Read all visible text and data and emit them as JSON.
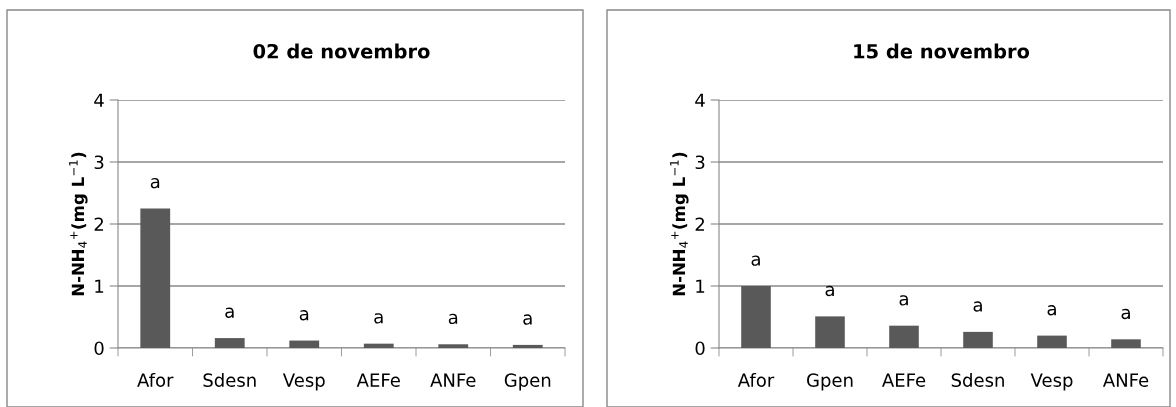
{
  "chart_data": [
    {
      "type": "bar",
      "title": "02 de novembro",
      "ylabel": "N-NH$_{4}$$^{+}$(mg L$^{−1}$)",
      "categories": [
        "Afor",
        "Sdesn",
        "Vesp",
        "AEFe",
        "ANFe",
        "Gpen"
      ],
      "values": [
        2.25,
        0.16,
        0.12,
        0.07,
        0.06,
        0.05
      ],
      "value_labels": [
        "a",
        "a",
        "a",
        "a",
        "a",
        "a"
      ],
      "color": "#595959",
      "ylim": [
        0,
        4
      ],
      "yticks": [
        0,
        1,
        2,
        3,
        4
      ],
      "grid": "y",
      "legend": false
    },
    {
      "type": "bar",
      "title": "15 de novembro",
      "ylabel": "N-NH$_{4}$$^{+}$(mg L$^{−1}$)",
      "categories": [
        "Afor",
        "Gpen",
        "AEFe",
        "Sdesn",
        "Vesp",
        "ANFe"
      ],
      "values": [
        1.0,
        0.51,
        0.36,
        0.26,
        0.2,
        0.14
      ],
      "value_labels": [
        "a",
        "a",
        "a",
        "a",
        "a",
        "a"
      ],
      "color": "#595959",
      "ylim": [
        0,
        4
      ],
      "yticks": [
        0,
        1,
        2,
        3,
        4
      ],
      "grid": "y",
      "legend": false
    }
  ]
}
